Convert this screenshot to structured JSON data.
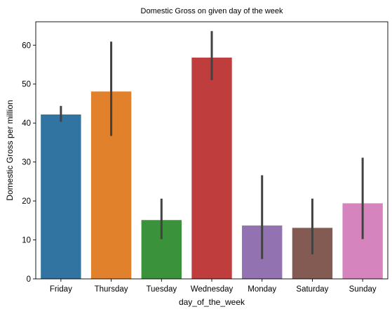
{
  "chart_data": {
    "type": "bar",
    "title": "Domestic Gross on given day of the week",
    "xlabel": "day_of_the_week",
    "ylabel": "Domestic Gross per million",
    "categories": [
      "Friday",
      "Thursday",
      "Tuesday",
      "Wednesday",
      "Monday",
      "Saturday",
      "Sunday"
    ],
    "values": [
      42.2,
      48.1,
      15.1,
      56.8,
      13.7,
      13.1,
      19.4
    ],
    "error_low": [
      40.3,
      36.7,
      10.2,
      51.0,
      5.1,
      6.3,
      10.2
    ],
    "error_high": [
      44.4,
      60.9,
      20.6,
      63.6,
      26.6,
      20.6,
      31.1
    ],
    "colors": [
      "#3274a1",
      "#e1812c",
      "#3a923a",
      "#c03d3e",
      "#9372b2",
      "#845b53",
      "#d684bd"
    ],
    "error_color": "#424242",
    "ylim": [
      0,
      66
    ],
    "yticks": [
      0,
      10,
      20,
      30,
      40,
      50,
      60
    ],
    "grid": false,
    "legend": "none"
  }
}
